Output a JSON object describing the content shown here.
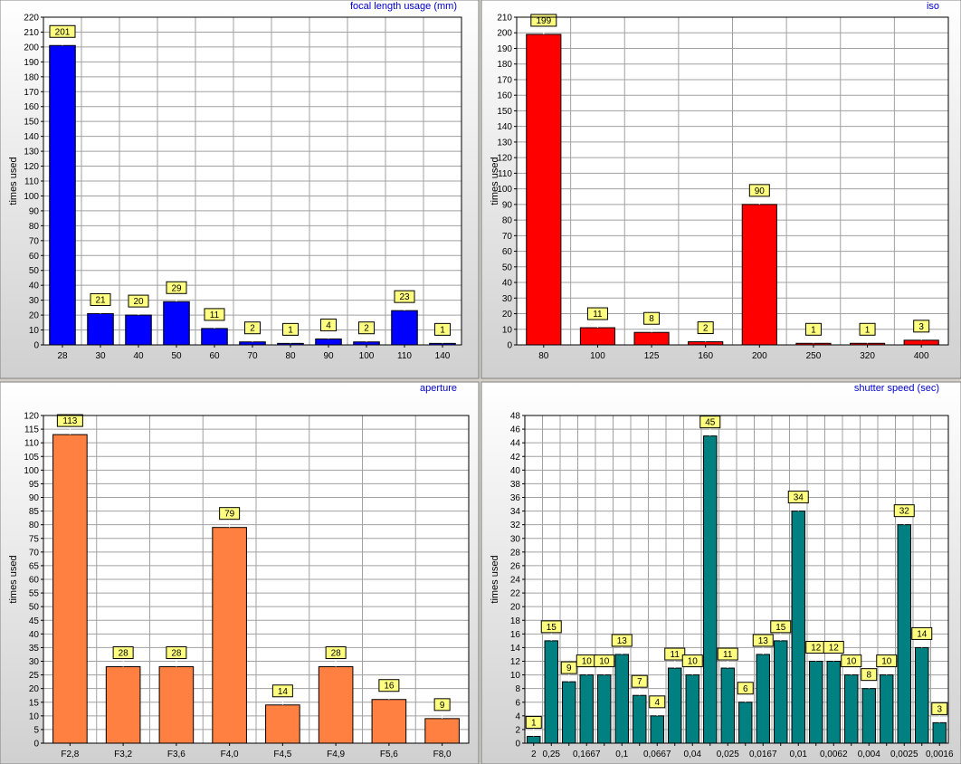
{
  "chart_data": [
    {
      "type": "bar",
      "title": "focal length usage (mm)",
      "xlabel": "",
      "ylabel": "times used",
      "ylim": [
        0,
        220
      ],
      "ytick_step": 10,
      "grid": true,
      "bar_color": "#0000ff",
      "categories": [
        "28",
        "30",
        "40",
        "50",
        "60",
        "70",
        "80",
        "90",
        "100",
        "110",
        "140"
      ],
      "values": [
        201,
        21,
        20,
        29,
        11,
        2,
        1,
        4,
        2,
        23,
        1
      ]
    },
    {
      "type": "bar",
      "title": "iso",
      "xlabel": "",
      "ylabel": "times used",
      "ylim": [
        0,
        210
      ],
      "ytick_step": 10,
      "grid": true,
      "bar_color": "#ff0000",
      "categories": [
        "80",
        "100",
        "125",
        "160",
        "200",
        "250",
        "320",
        "400"
      ],
      "values": [
        199,
        11,
        8,
        2,
        90,
        1,
        1,
        3
      ]
    },
    {
      "type": "bar",
      "title": "aperture",
      "xlabel": "",
      "ylabel": "times used",
      "ylim": [
        0,
        120
      ],
      "ytick_step": 5,
      "grid": true,
      "bar_color": "#ff8040",
      "categories": [
        "F2,8",
        "F3,2",
        "F3,6",
        "F4,0",
        "F4,5",
        "F4,9",
        "F5,6",
        "F8,0"
      ],
      "values": [
        113,
        28,
        28,
        79,
        14,
        28,
        16,
        9
      ]
    },
    {
      "type": "bar",
      "title": "shutter speed (sec)",
      "xlabel": "",
      "ylabel": "times used",
      "ylim": [
        0,
        48
      ],
      "ytick_step": 2,
      "grid": true,
      "bar_color": "#008080",
      "categories": [
        "2",
        "0,25",
        "",
        "0,1667",
        "",
        "0,1",
        "",
        "0,0667",
        "",
        "0,04",
        "",
        "0,025",
        "",
        "0,0167",
        "",
        "0,01",
        "",
        "0,0062",
        "",
        "0,004",
        "",
        "0,0025",
        "",
        "0,0016"
      ],
      "values": [
        1,
        15,
        9,
        10,
        10,
        13,
        7,
        4,
        11,
        10,
        45,
        11,
        6,
        13,
        15,
        34,
        12,
        12,
        10,
        8,
        10,
        32,
        14,
        3
      ]
    }
  ]
}
